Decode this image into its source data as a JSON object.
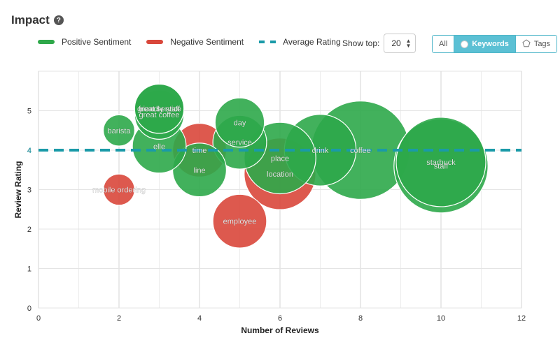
{
  "header": {
    "title": "Impact",
    "help_glyph": "?"
  },
  "legend": [
    {
      "label": "Positive Sentiment",
      "color": "#2ea84a",
      "style": "solid"
    },
    {
      "label": "Negative Sentiment",
      "color": "#d9473b",
      "style": "solid"
    },
    {
      "label": "Average Rating",
      "color": "#1a9aa8",
      "style": "dashed"
    }
  ],
  "controls": {
    "show_top_label": "Show top:",
    "show_top_value": "20",
    "filter_options": [
      {
        "label": "All",
        "icon": "",
        "active": false
      },
      {
        "label": "Keywords",
        "icon": "radio-icon",
        "active": true
      },
      {
        "label": "Tags",
        "icon": "pentagon-icon",
        "active": false
      }
    ]
  },
  "colors": {
    "positive": "#2ea84a",
    "negative": "#d9473b",
    "average": "#1a9aa8"
  },
  "chart_data": {
    "type": "scatter",
    "subtype": "bubble",
    "xlabel": "Number of Reviews",
    "ylabel": "Review Rating",
    "xlim": [
      0,
      12
    ],
    "ylim": [
      0,
      6
    ],
    "xticks": [
      0,
      2,
      4,
      6,
      8,
      10,
      12
    ],
    "yticks": [
      0,
      1,
      2,
      3,
      4,
      5
    ],
    "grid": true,
    "average_rating": 4.0,
    "average_rating_tick": "4",
    "points": [
      {
        "label": "location",
        "x": 6,
        "y": 3.4,
        "size": 1.6,
        "sentiment": "negative"
      },
      {
        "label": "time",
        "x": 4,
        "y": 4.0,
        "size": 1.2,
        "sentiment": "negative"
      },
      {
        "label": "employee",
        "x": 5,
        "y": 2.2,
        "size": 1.2,
        "sentiment": "negative"
      },
      {
        "label": "mobile ordering",
        "x": 2,
        "y": 3.0,
        "size": 0.7,
        "sentiment": "negative"
      },
      {
        "label": "coffee",
        "x": 8,
        "y": 4.0,
        "size": 2.2,
        "sentiment": "positive"
      },
      {
        "label": "staff",
        "x": 10,
        "y": 3.6,
        "size": 2.1,
        "sentiment": "positive"
      },
      {
        "label": "starbuck",
        "x": 10,
        "y": 3.7,
        "size": 2.0,
        "sentiment": "positive"
      },
      {
        "label": "drink",
        "x": 7,
        "y": 4.0,
        "size": 1.6,
        "sentiment": "positive"
      },
      {
        "label": "place",
        "x": 6,
        "y": 3.8,
        "size": 1.6,
        "sentiment": "positive"
      },
      {
        "label": "service",
        "x": 5,
        "y": 4.2,
        "size": 1.2,
        "sentiment": "positive"
      },
      {
        "label": "day",
        "x": 5,
        "y": 4.7,
        "size": 1.1,
        "sentiment": "positive"
      },
      {
        "label": "line",
        "x": 4,
        "y": 3.5,
        "size": 1.2,
        "sentiment": "positive"
      },
      {
        "label": "elle",
        "x": 3,
        "y": 4.1,
        "size": 1.2,
        "sentiment": "positive"
      },
      {
        "label": "great coffee",
        "x": 3,
        "y": 4.9,
        "size": 1.1,
        "sentiment": "positive"
      },
      {
        "label": "great service",
        "x": 3,
        "y": 5.05,
        "size": 1.1,
        "sentiment": "positive"
      },
      {
        "label": "friendly staff",
        "x": 3,
        "y": 5.05,
        "size": 1.1,
        "sentiment": "positive"
      },
      {
        "label": "barista",
        "x": 2,
        "y": 4.5,
        "size": 0.7,
        "sentiment": "positive"
      }
    ]
  }
}
